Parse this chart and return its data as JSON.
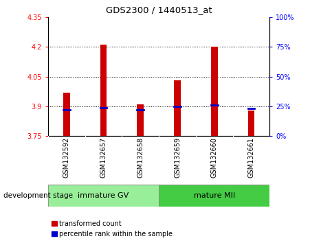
{
  "title": "GDS2300 / 1440513_at",
  "samples": [
    "GSM132592",
    "GSM132657",
    "GSM132658",
    "GSM132659",
    "GSM132660",
    "GSM132661"
  ],
  "bar_bottoms": [
    3.75,
    3.75,
    3.75,
    3.75,
    3.75,
    3.75
  ],
  "bar_tops": [
    3.97,
    4.21,
    3.91,
    4.03,
    4.2,
    3.88
  ],
  "percentile_values": [
    3.882,
    3.893,
    3.882,
    3.9,
    3.908,
    3.888
  ],
  "ylim": [
    3.75,
    4.35
  ],
  "yticks_left": [
    3.75,
    3.9,
    4.05,
    4.2,
    4.35
  ],
  "yticks_right": [
    0,
    25,
    50,
    75,
    100
  ],
  "yticks_right_values": [
    3.75,
    3.9,
    4.05,
    4.2,
    4.35
  ],
  "bar_color": "#cc0000",
  "percentile_color": "#0000cc",
  "group1_label": "immature GV",
  "group2_label": "mature MII",
  "group1_color": "#99ee99",
  "group2_color": "#44cc44",
  "group_bg_color": "#cccccc",
  "xlabel_left": "development stage",
  "legend_bar_label": "transformed count",
  "legend_pct_label": "percentile rank within the sample",
  "plot_bg": "#ffffff",
  "bar_width": 0.18
}
